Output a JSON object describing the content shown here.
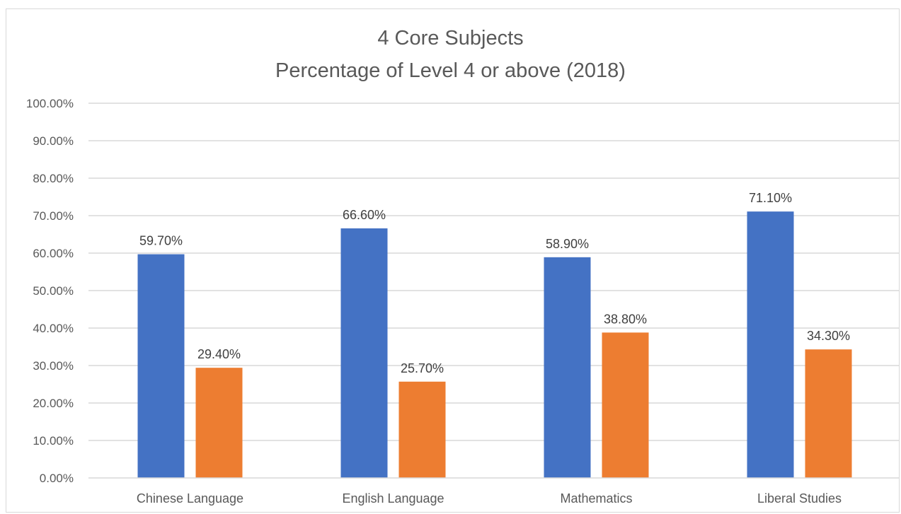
{
  "chart_data": {
    "type": "bar",
    "title": "4 Core Subjects",
    "subtitle": "Percentage of Level 4 or above (2018)",
    "xlabel": "",
    "ylabel": "",
    "categories": [
      "Chinese Language",
      "English Language",
      "Mathematics",
      "Liberal Studies"
    ],
    "series": [
      {
        "color": "#4472c4",
        "values": [
          59.7,
          66.6,
          58.9,
          71.1
        ],
        "labels": [
          "59.70%",
          "66.60%",
          "58.90%",
          "71.10%"
        ]
      },
      {
        "color": "#ed7d31",
        "values": [
          29.4,
          25.7,
          38.8,
          34.3
        ],
        "labels": [
          "29.40%",
          "25.70%",
          "38.80%",
          "34.30%"
        ]
      }
    ],
    "ylim": [
      0,
      100
    ],
    "y_ticks": [
      0,
      10,
      20,
      30,
      40,
      50,
      60,
      70,
      80,
      90,
      100
    ],
    "y_tick_labels": [
      "0.00%",
      "10.00%",
      "20.00%",
      "30.00%",
      "40.00%",
      "50.00%",
      "60.00%",
      "70.00%",
      "80.00%",
      "90.00%",
      "100.00%"
    ],
    "grid": true,
    "legend": "none",
    "gridline_color": "#d9d9d9"
  }
}
